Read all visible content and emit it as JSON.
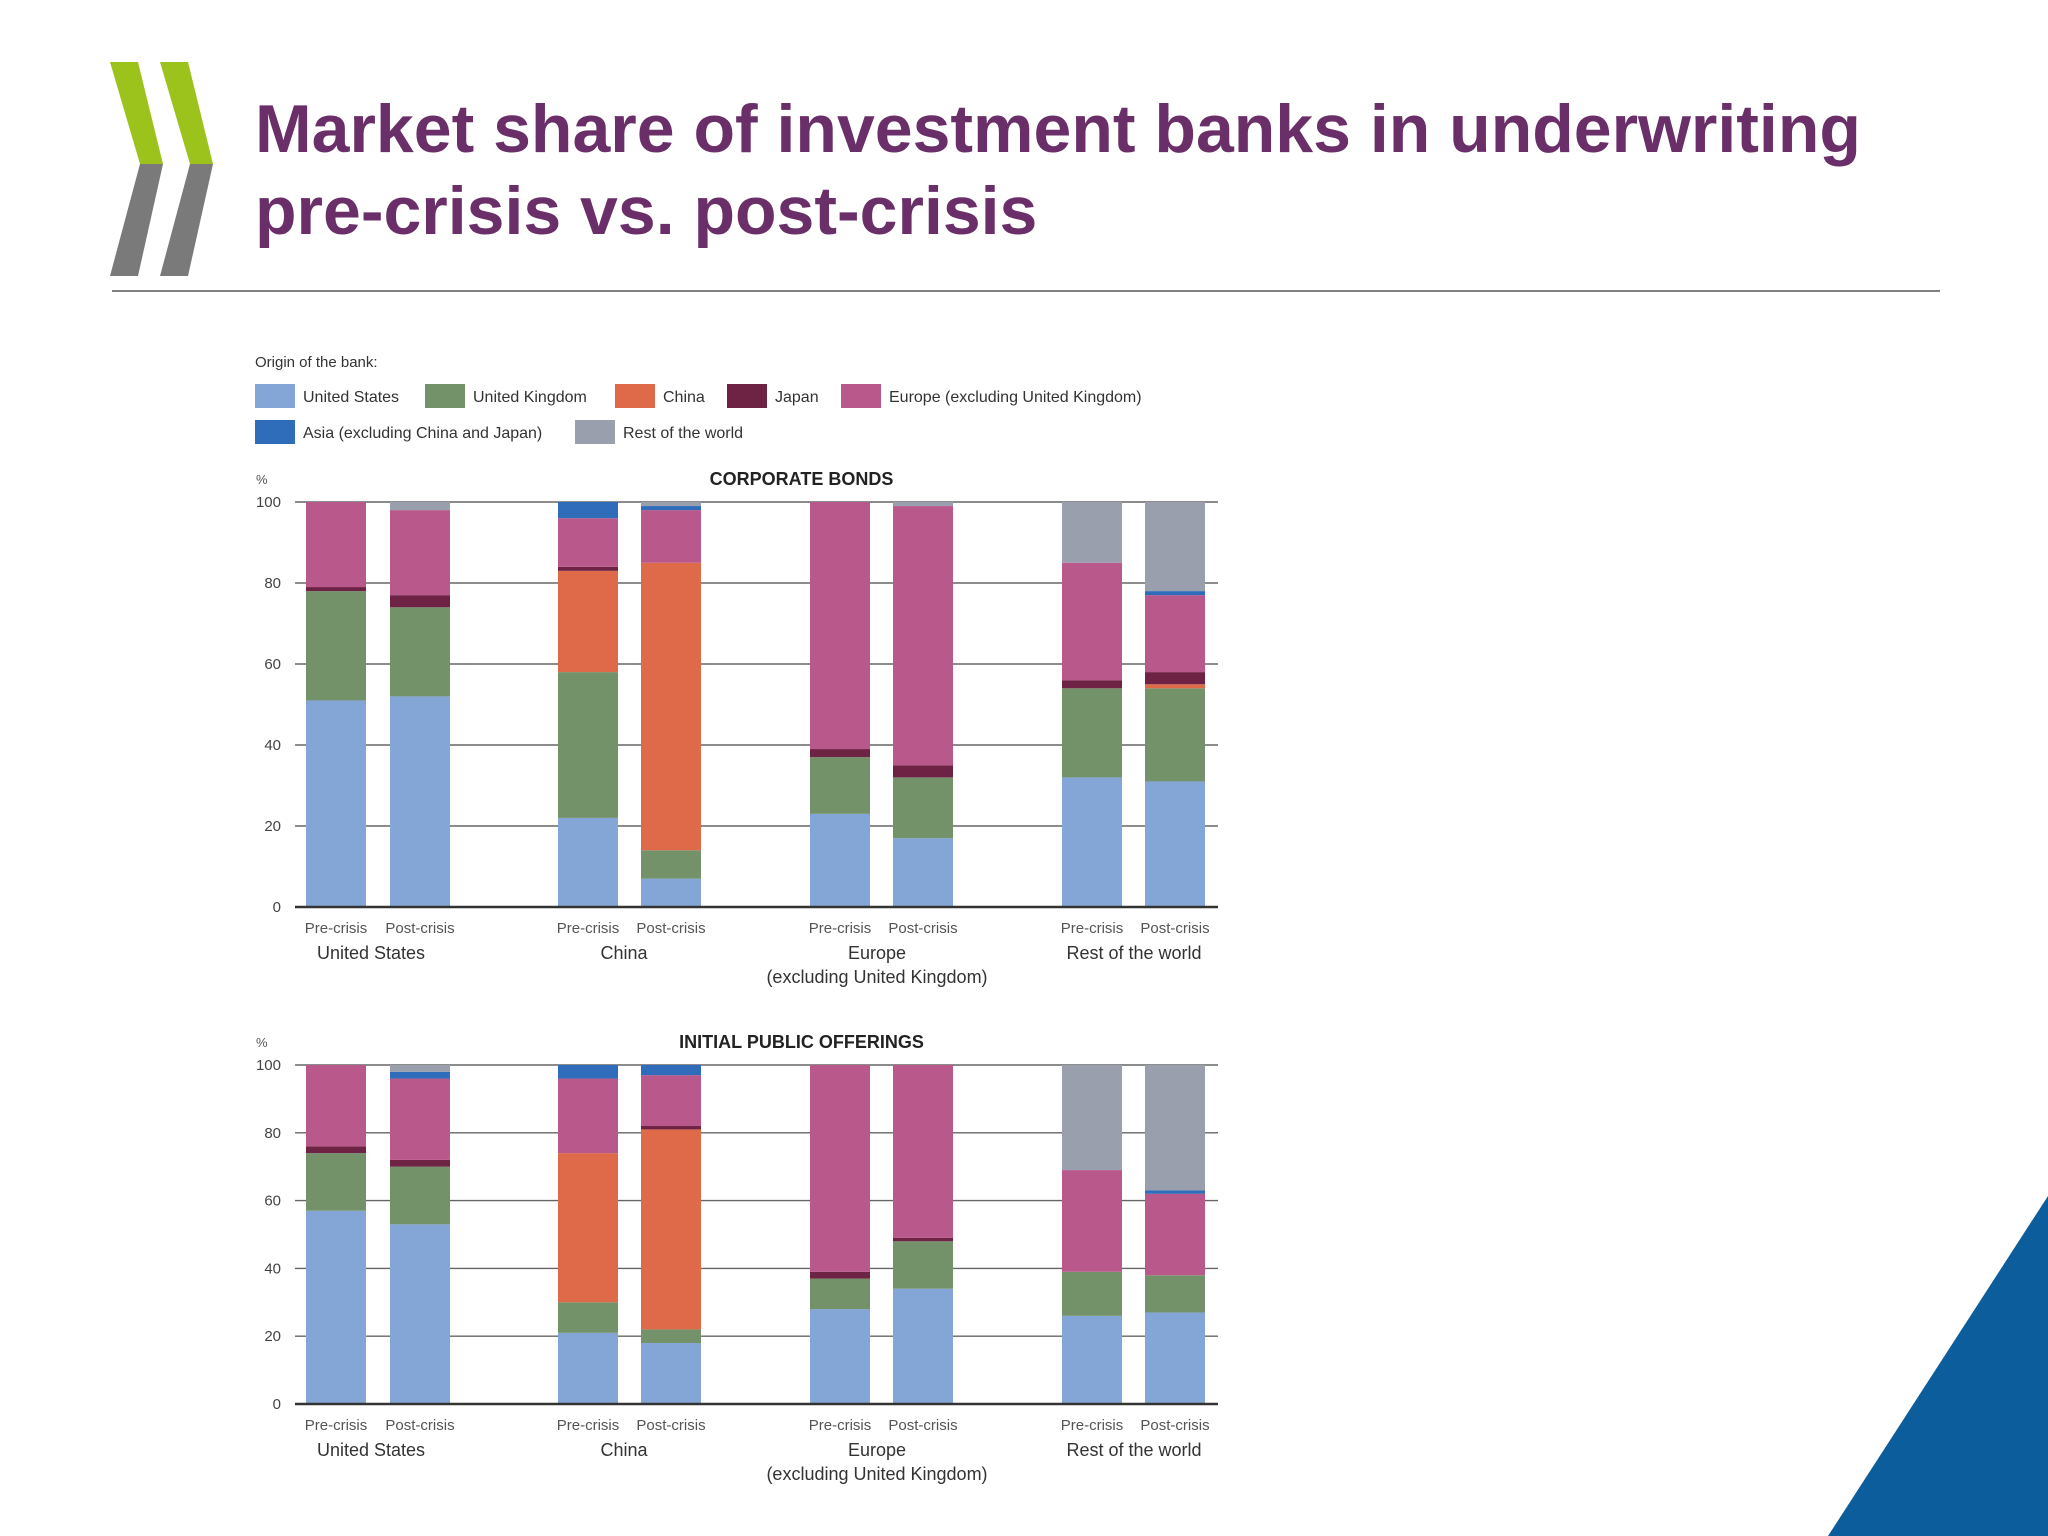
{
  "slide": {
    "title_line1": "Market share of investment banks in underwriting",
    "title_line2": "pre-crisis vs. post-crisis"
  },
  "colors": {
    "title": "#6a2f69",
    "logo_green": "#9bc31c",
    "logo_grey": "#7a7a7a",
    "corner_blue": "#0b5d9c"
  },
  "legend": {
    "title": "Origin of the bank:",
    "items": [
      {
        "key": "us",
        "label": "United States",
        "color": "#84a6d6"
      },
      {
        "key": "uk",
        "label": "United Kingdom",
        "color": "#73926a"
      },
      {
        "key": "cn",
        "label": "China",
        "color": "#df6a4a"
      },
      {
        "key": "jp",
        "label": "Japan",
        "color": "#6e2344"
      },
      {
        "key": "eu",
        "label": "Europe (excluding United Kingdom)",
        "color": "#b9588a"
      },
      {
        "key": "as",
        "label": "Asia (excluding China and Japan)",
        "color": "#2f6cba"
      },
      {
        "key": "rw",
        "label": "Rest of the world",
        "color": "#9a9fae"
      }
    ]
  },
  "chart_data": [
    {
      "type": "bar",
      "stacked": true,
      "title": "CORPORATE BONDS",
      "ylabel": "%",
      "ylim": [
        0,
        100
      ],
      "yticks": [
        0,
        20,
        40,
        60,
        80,
        100
      ],
      "grid": true,
      "groups": [
        "United States",
        "China",
        "Europe\n(excluding United Kingdom)",
        "Rest of the world"
      ],
      "categories": [
        "Pre-crisis",
        "Post-crisis",
        "Pre-crisis",
        "Post-crisis",
        "Pre-crisis",
        "Post-crisis",
        "Pre-crisis",
        "Post-crisis"
      ],
      "series": [
        {
          "name": "United States",
          "values": [
            51,
            52,
            22,
            7,
            23,
            17,
            32,
            31
          ]
        },
        {
          "name": "United Kingdom",
          "values": [
            27,
            22,
            36,
            7,
            14,
            15,
            22,
            23
          ]
        },
        {
          "name": "China",
          "values": [
            0,
            0,
            25,
            71,
            0,
            0,
            0,
            1
          ]
        },
        {
          "name": "Japan",
          "values": [
            1,
            3,
            1,
            0,
            2,
            3,
            2,
            3
          ]
        },
        {
          "name": "Europe (excluding United Kingdom)",
          "values": [
            21,
            21,
            12,
            13,
            61,
            64,
            29,
            19
          ]
        },
        {
          "name": "Asia (excluding China and Japan)",
          "values": [
            0,
            0,
            4,
            1,
            0,
            0,
            0,
            1
          ]
        },
        {
          "name": "Rest of the world",
          "values": [
            0,
            2,
            0,
            1,
            0,
            1,
            15,
            22
          ]
        }
      ]
    },
    {
      "type": "bar",
      "stacked": true,
      "title": "INITIAL PUBLIC OFFERINGS",
      "ylabel": "%",
      "ylim": [
        0,
        100
      ],
      "yticks": [
        0,
        20,
        40,
        60,
        80,
        100
      ],
      "grid": true,
      "groups": [
        "United States",
        "China",
        "Europe\n(excluding United Kingdom)",
        "Rest of the world"
      ],
      "categories": [
        "Pre-crisis",
        "Post-crisis",
        "Pre-crisis",
        "Post-crisis",
        "Pre-crisis",
        "Post-crisis",
        "Pre-crisis",
        "Post-crisis"
      ],
      "series": [
        {
          "name": "United States",
          "values": [
            57,
            53,
            21,
            18,
            28,
            34,
            26,
            27
          ]
        },
        {
          "name": "United Kingdom",
          "values": [
            17,
            17,
            9,
            4,
            9,
            14,
            13,
            11
          ]
        },
        {
          "name": "China",
          "values": [
            0,
            0,
            44,
            59,
            0,
            0,
            0,
            0
          ]
        },
        {
          "name": "Japan",
          "values": [
            2,
            2,
            0,
            1,
            2,
            1,
            0,
            0
          ]
        },
        {
          "name": "Europe (excluding United Kingdom)",
          "values": [
            24,
            24,
            22,
            15,
            61,
            51,
            30,
            24
          ]
        },
        {
          "name": "Asia (excluding China and Japan)",
          "values": [
            0,
            2,
            4,
            3,
            0,
            0,
            0,
            1
          ]
        },
        {
          "name": "Rest of the world",
          "values": [
            0,
            2,
            0,
            0,
            0,
            0,
            31,
            37
          ]
        }
      ]
    }
  ]
}
